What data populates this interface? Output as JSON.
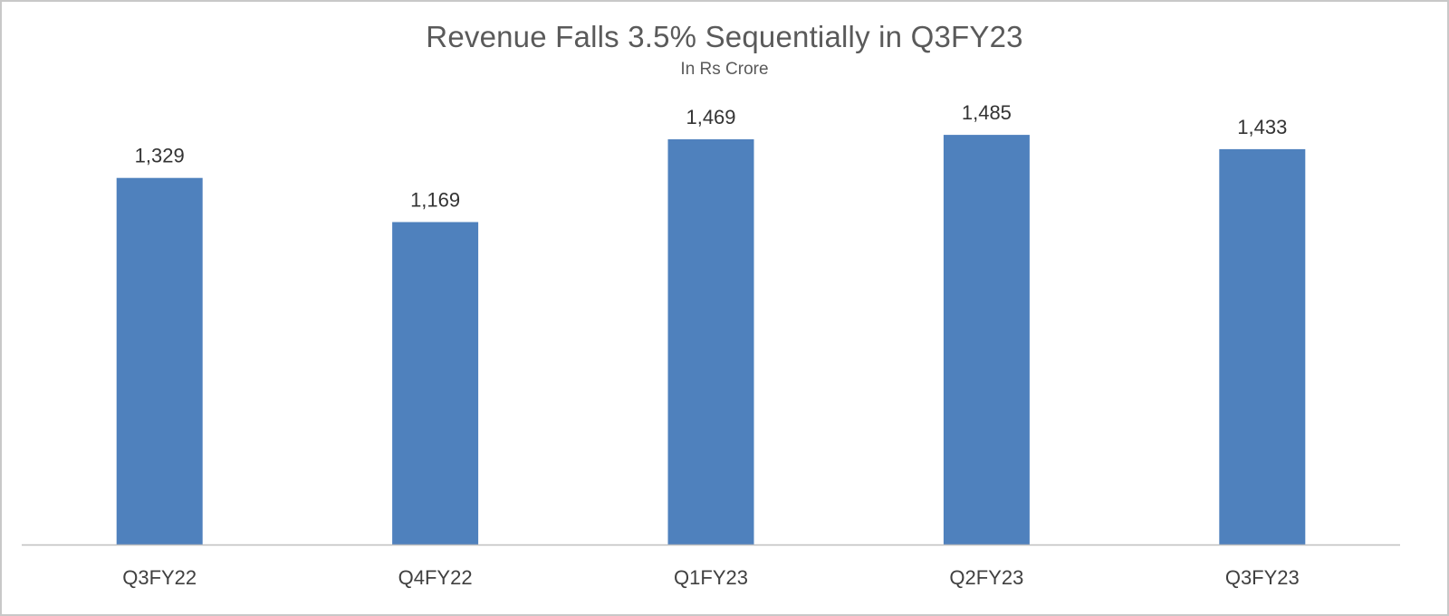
{
  "chart_data": {
    "type": "bar",
    "title": "Revenue Falls 3.5% Sequentially in Q3FY23",
    "subtitle": "In Rs Crore",
    "categories": [
      "Q3FY22",
      "Q4FY22",
      "Q1FY23",
      "Q2FY23",
      "Q3FY23"
    ],
    "values": [
      1329,
      1169,
      1469,
      1485,
      1433
    ],
    "value_labels": [
      "1,329",
      "1,169",
      "1,469",
      "1,485",
      "1,433"
    ],
    "xlabel": "",
    "ylabel": "",
    "ylim": [
      0,
      1600
    ],
    "grid": false,
    "legend": "none",
    "colors": {
      "bar": "#4f81bd",
      "axis": "#bfbfbf",
      "title": "#5a5a5a"
    }
  }
}
